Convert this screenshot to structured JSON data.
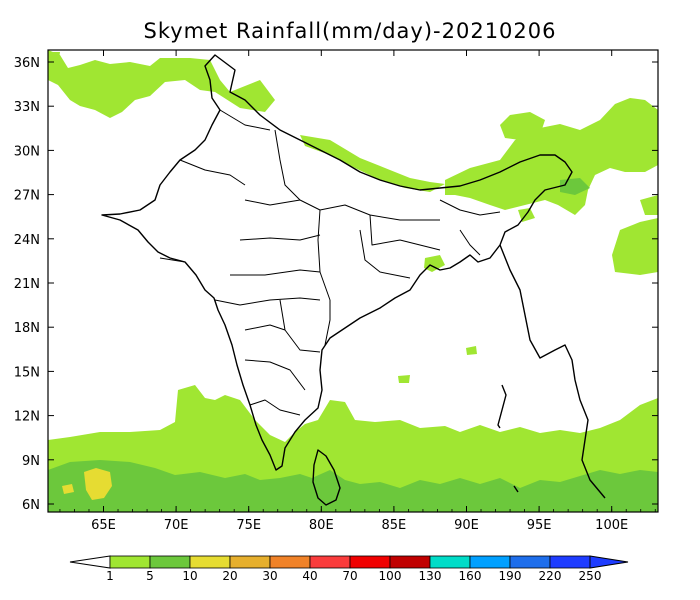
{
  "title": "Skymet Rainfall(mm/day)-20210206",
  "axes": {
    "lon_labels": [
      "65E",
      "70E",
      "75E",
      "80E",
      "85E",
      "90E",
      "95E",
      "100E"
    ],
    "lat_labels": [
      "36N",
      "33N",
      "30N",
      "27N",
      "24N",
      "21N",
      "18N",
      "15N",
      "12N",
      "9N",
      "6N"
    ]
  },
  "colorbar": {
    "labels": [
      "1",
      "5",
      "10",
      "20",
      "30",
      "40",
      "70",
      "100",
      "130",
      "160",
      "190",
      "220",
      "250"
    ],
    "colors": [
      "#a0e632",
      "#6cc83c",
      "#e6dc32",
      "#e6af2d",
      "#f08228",
      "#fa3c3c",
      "#f00000",
      "#c00000",
      "#00dcc8",
      "#00a0ff",
      "#1e6eeb",
      "#1e3cff"
    ],
    "min_arrow_color": "#ffffff",
    "max_arrow_color": "#1e3cff"
  },
  "palette": {
    "light_green": "#a0e632",
    "mid_green": "#6cc83c",
    "yellow": "#e6dc32"
  }
}
